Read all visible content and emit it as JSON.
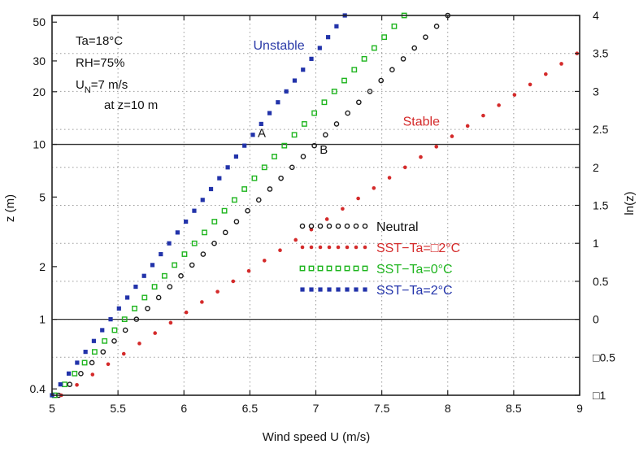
{
  "chart_data": {
    "type": "scatter",
    "xlabel": "Wind speed U (m/s)",
    "ylabel": "z (m)",
    "y2label": "ln(z)",
    "xlim": [
      5,
      9
    ],
    "ylim_ln": [
      -1,
      4
    ],
    "y_scale": "log",
    "grid": "dotted",
    "legend_position": "center-right",
    "x_ticks": [
      5,
      5.5,
      6,
      6.5,
      7,
      7.5,
      8,
      8.5,
      9
    ],
    "y_ticks": [
      {
        "label": "0.4",
        "z": 0.4
      },
      {
        "label": "1",
        "z": 1
      },
      {
        "label": "2",
        "z": 2
      },
      {
        "label": "5",
        "z": 5
      },
      {
        "label": "10",
        "z": 10
      },
      {
        "label": "20",
        "z": 20
      },
      {
        "label": "30",
        "z": 30
      },
      {
        "label": "50",
        "z": 50
      }
    ],
    "y2_ticks": [
      {
        "label": "4",
        "v": 4
      },
      {
        "label": "3.5",
        "v": 3.5
      },
      {
        "label": "3",
        "v": 3
      },
      {
        "label": "2.5",
        "v": 2.5
      },
      {
        "label": "2",
        "v": 2
      },
      {
        "label": "1.5",
        "v": 1.5
      },
      {
        "label": "1",
        "v": 1
      },
      {
        "label": "0.5",
        "v": 0.5
      },
      {
        "label": "0",
        "v": 0
      },
      {
        "label": "□0.5",
        "v": -0.5
      },
      {
        "label": "□1",
        "v": -1
      }
    ],
    "reference_lines_z": [
      1,
      10
    ],
    "series": [
      {
        "name": "Neutral",
        "color": "#1a1a1a",
        "marker": "circle-open",
        "x": [
          5.05,
          8.0
        ],
        "ln_z": [
          -1,
          4
        ],
        "count": 36
      },
      {
        "name": "SST−Ta=□2°C",
        "color": "#d42a2a",
        "marker": "dot",
        "x": [
          5.07,
          8.98
        ],
        "ln_z": [
          -1,
          3.5
        ],
        "count": 34
      },
      {
        "name": "SST−Ta=0°C",
        "color": "#1fb51f",
        "marker": "square-open",
        "x": [
          5.02,
          7.67
        ],
        "ln_z": [
          -1,
          4
        ],
        "count": 36
      },
      {
        "name": "SST−Ta=2°C",
        "color": "#2233aa",
        "marker": "square",
        "x": [
          5.0,
          7.22
        ],
        "ln_z": [
          -1,
          4
        ],
        "count": 36
      }
    ],
    "series_labels": [
      {
        "text": "Unstable",
        "color": "#2a3aa8",
        "x": 6.72,
        "ln_z": 3.55
      },
      {
        "text": "Stable",
        "color": "#d42a2a",
        "x": 7.8,
        "ln_z": 2.55
      }
    ],
    "point_labels": [
      {
        "text": "A",
        "x": 6.59,
        "ln_z": 2.4
      },
      {
        "text": "B",
        "x": 7.06,
        "ln_z": 2.18
      }
    ],
    "annotations": [
      {
        "text": "Ta=18°C",
        "line": 1
      },
      {
        "text": "RH=75%",
        "line": 2
      },
      {
        "text": "U",
        "sub": "N",
        "tail": "=7 m/s",
        "line": 3
      },
      {
        "text": "at z=10 m",
        "line": 4
      }
    ]
  }
}
